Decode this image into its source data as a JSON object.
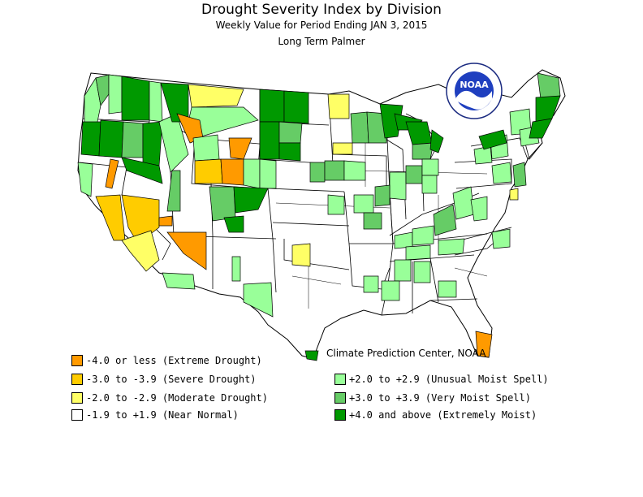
{
  "title": "Drought Severity Index by Division",
  "subtitle": "Weekly Value for Period Ending JAN  3, 2015",
  "subtitle2": "Long Term Palmer",
  "credit": "Climate Prediction Center, NOAA",
  "logo_text": "NOAA",
  "colors": {
    "extreme_drought": "#ff9a00",
    "severe_drought": "#ffcc00",
    "moderate_drought": "#ffff66",
    "near_normal": "#ffffff",
    "unusual_moist": "#99ff99",
    "very_moist": "#66cc66",
    "extremely_moist": "#009900",
    "boundary": "#000000"
  },
  "legend": [
    {
      "label": "-4.0 or less (Extreme Drought)",
      "color": "#ff9a00"
    },
    {
      "label": "-3.0 to -3.9 (Severe Drought)",
      "color": "#ffcc00"
    },
    {
      "label": "-2.0 to -2.9 (Moderate Drought)",
      "color": "#ffff66"
    },
    {
      "label": "-1.9 to +1.9 (Near Normal)",
      "color": "#ffffff"
    },
    {
      "label": "+2.0 to +2.9 (Unusual Moist Spell)",
      "color": "#99ff99"
    },
    {
      "label": "+3.0 to +3.9 (Very Moist Spell)",
      "color": "#66cc66"
    },
    {
      "label": "+4.0 and above (Extremely Moist)",
      "color": "#009900"
    }
  ]
}
